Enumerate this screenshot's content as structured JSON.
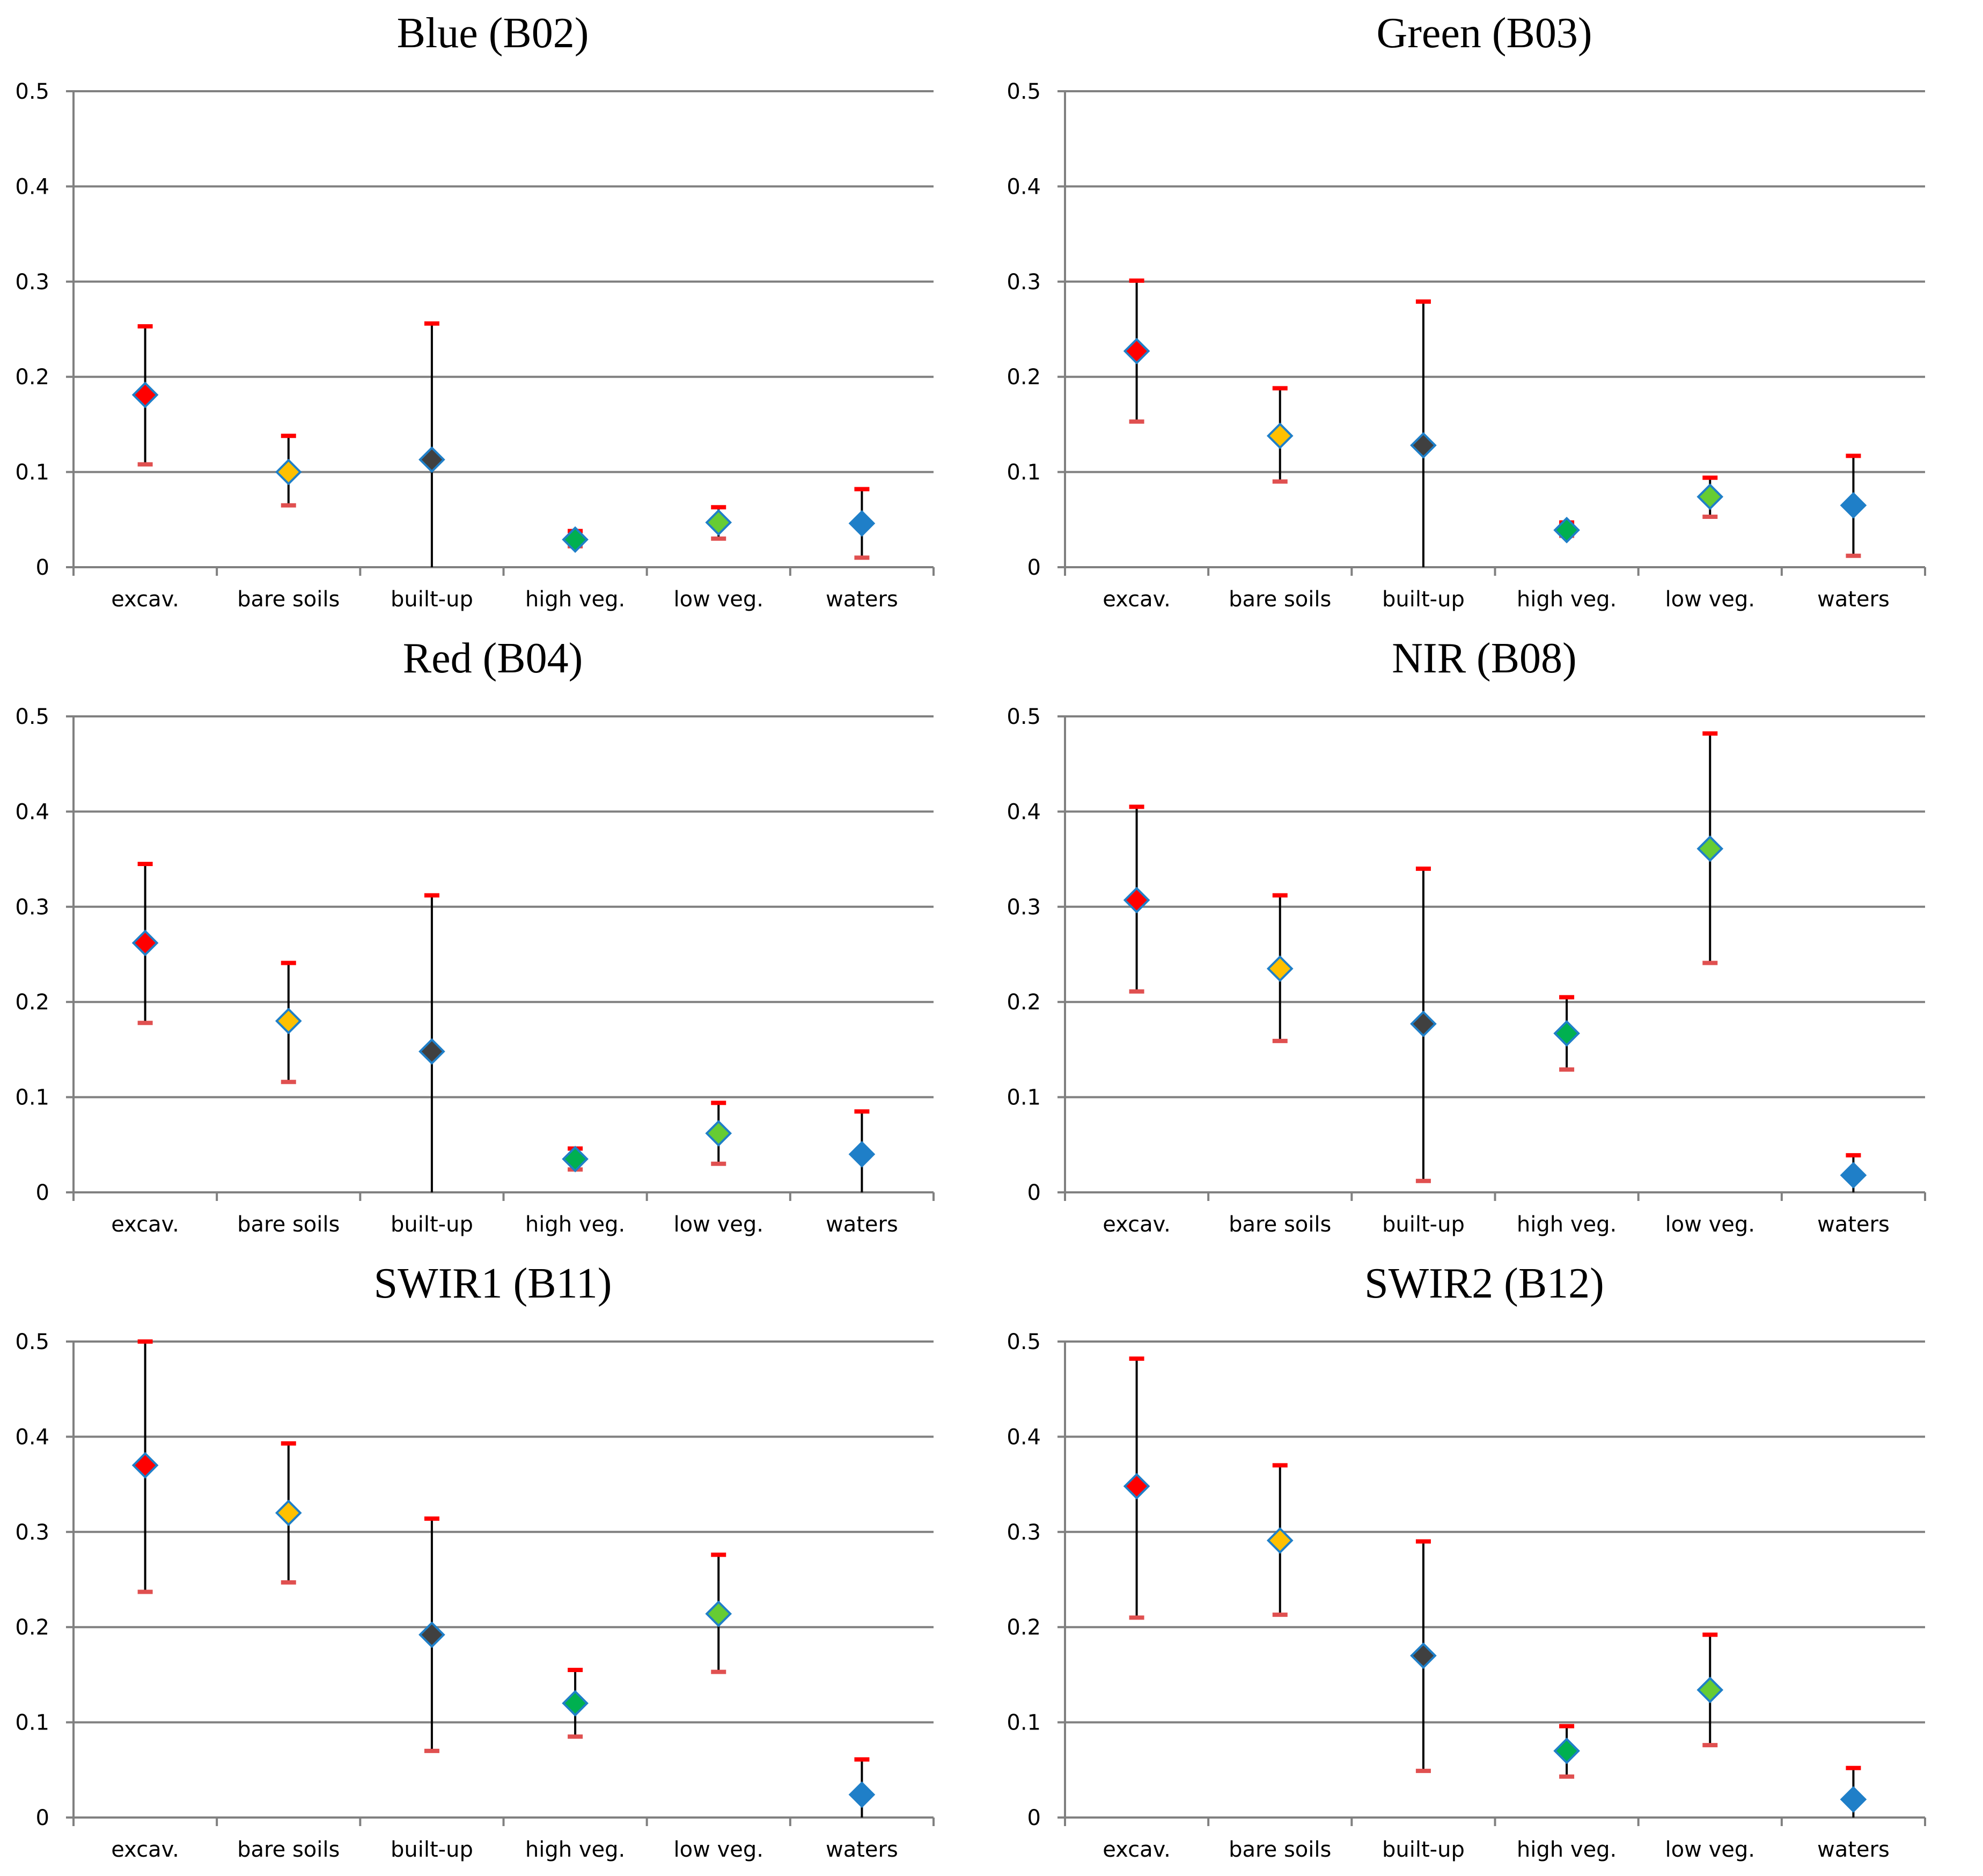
{
  "colors": {
    "excav.": "#ff0000",
    "bare soils": "#ffc000",
    "built-up": "#404040",
    "high veg.": "#00b050",
    "low veg.": "#66cc33",
    "waters": "#1f7fc8",
    "marker_border": "#1f7fc8",
    "cap_top": "#ff0000",
    "cap_bottom": "#e05050",
    "gridline": "#808080",
    "whisker": "#000000"
  },
  "chart_data": [
    {
      "type": "scatter",
      "title": "Blue (B02)",
      "categories": [
        "excav.",
        "bare soils",
        "built-up",
        "high veg.",
        "low veg.",
        "waters"
      ],
      "values": [
        0.181,
        0.1,
        0.113,
        0.029,
        0.047,
        0.046
      ],
      "upper": [
        0.253,
        0.138,
        0.256,
        0.038,
        0.063,
        0.082
      ],
      "lower": [
        0.108,
        0.065,
        0.0,
        0.022,
        0.03,
        0.01
      ],
      "show_upper_cap": [
        true,
        true,
        true,
        true,
        true,
        true
      ],
      "show_lower_cap": [
        true,
        true,
        false,
        true,
        true,
        true
      ],
      "ylim": [
        0,
        0.5
      ],
      "yticks": [
        "0",
        "0.1",
        "0.2",
        "0.3",
        "0.4",
        "0.5"
      ],
      "grid": true
    },
    {
      "type": "scatter",
      "title": "Green (B03)",
      "categories": [
        "excav.",
        "bare soils",
        "built-up",
        "high veg.",
        "low veg.",
        "waters"
      ],
      "values": [
        0.227,
        0.138,
        0.128,
        0.039,
        0.074,
        0.065
      ],
      "upper": [
        0.301,
        0.188,
        0.279,
        0.047,
        0.094,
        0.117
      ],
      "lower": [
        0.153,
        0.09,
        0.0,
        0.033,
        0.053,
        0.012
      ],
      "show_upper_cap": [
        true,
        true,
        true,
        true,
        true,
        true
      ],
      "show_lower_cap": [
        true,
        true,
        false,
        true,
        true,
        true
      ],
      "ylim": [
        0,
        0.5
      ],
      "yticks": [
        "0",
        "0.1",
        "0.2",
        "0.3",
        "0.4",
        "0.5"
      ],
      "grid": true
    },
    {
      "type": "scatter",
      "title": "Red (B04)",
      "categories": [
        "excav.",
        "bare soils",
        "built-up",
        "high veg.",
        "low veg.",
        "waters"
      ],
      "values": [
        0.262,
        0.18,
        0.148,
        0.035,
        0.062,
        0.04
      ],
      "upper": [
        0.345,
        0.241,
        0.312,
        0.046,
        0.094,
        0.085
      ],
      "lower": [
        0.178,
        0.116,
        0.0,
        0.024,
        0.03,
        0.0
      ],
      "show_upper_cap": [
        true,
        true,
        true,
        true,
        true,
        true
      ],
      "show_lower_cap": [
        true,
        true,
        false,
        true,
        true,
        false
      ],
      "ylim": [
        0,
        0.5
      ],
      "yticks": [
        "0",
        "0.1",
        "0.2",
        "0.3",
        "0.4",
        "0.5"
      ],
      "grid": true
    },
    {
      "type": "scatter",
      "title": "NIR (B08)",
      "categories": [
        "excav.",
        "bare soils",
        "built-up",
        "high veg.",
        "low veg.",
        "waters"
      ],
      "values": [
        0.307,
        0.235,
        0.177,
        0.167,
        0.361,
        0.018
      ],
      "upper": [
        0.405,
        0.312,
        0.34,
        0.205,
        0.482,
        0.039
      ],
      "lower": [
        0.211,
        0.159,
        0.012,
        0.129,
        0.241,
        0.0
      ],
      "show_upper_cap": [
        true,
        true,
        true,
        true,
        true,
        true
      ],
      "show_lower_cap": [
        true,
        true,
        true,
        true,
        true,
        false
      ],
      "ylim": [
        0,
        0.5
      ],
      "yticks": [
        "0",
        "0.1",
        "0.2",
        "0.3",
        "0.4",
        "0.5"
      ],
      "grid": true
    },
    {
      "type": "scatter",
      "title": "SWIR1 (B11)",
      "categories": [
        "excav.",
        "bare soils",
        "built-up",
        "high veg.",
        "low veg.",
        "waters"
      ],
      "values": [
        0.37,
        0.32,
        0.192,
        0.12,
        0.214,
        0.024
      ],
      "upper": [
        0.5,
        0.393,
        0.314,
        0.155,
        0.276,
        0.061
      ],
      "lower": [
        0.237,
        0.247,
        0.07,
        0.085,
        0.153,
        0.0
      ],
      "show_upper_cap": [
        true,
        true,
        true,
        true,
        true,
        true
      ],
      "show_lower_cap": [
        true,
        true,
        true,
        true,
        true,
        false
      ],
      "ylim": [
        0,
        0.5
      ],
      "yticks": [
        "0",
        "0.1",
        "0.2",
        "0.3",
        "0.4",
        "0.5"
      ],
      "grid": true
    },
    {
      "type": "scatter",
      "title": "SWIR2 (B12)",
      "categories": [
        "excav.",
        "bare soils",
        "built-up",
        "high veg.",
        "low veg.",
        "waters"
      ],
      "values": [
        0.348,
        0.291,
        0.17,
        0.07,
        0.134,
        0.019
      ],
      "upper": [
        0.482,
        0.37,
        0.29,
        0.096,
        0.192,
        0.052
      ],
      "lower": [
        0.21,
        0.213,
        0.049,
        0.043,
        0.076,
        0.0
      ],
      "show_upper_cap": [
        true,
        true,
        true,
        true,
        true,
        true
      ],
      "show_lower_cap": [
        true,
        true,
        true,
        true,
        true,
        false
      ],
      "ylim": [
        0,
        0.5
      ],
      "yticks": [
        "0",
        "0.1",
        "0.2",
        "0.3",
        "0.4",
        "0.5"
      ],
      "grid": true
    }
  ]
}
